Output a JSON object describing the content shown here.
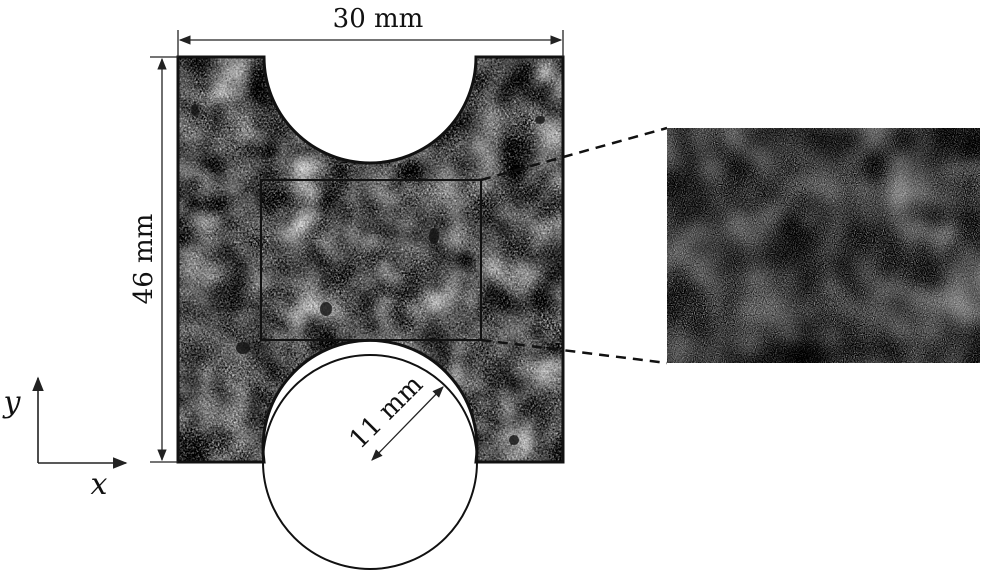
{
  "dimensions": {
    "width_label": "30 mm",
    "height_label": "46 mm",
    "radius_label": "11 mm"
  },
  "axes": {
    "x_label": "x",
    "y_label": "y"
  },
  "colors": {
    "line": "#111111",
    "speckle_dark": "#1a1a1a",
    "speckle_light": "#f2f2f2"
  }
}
